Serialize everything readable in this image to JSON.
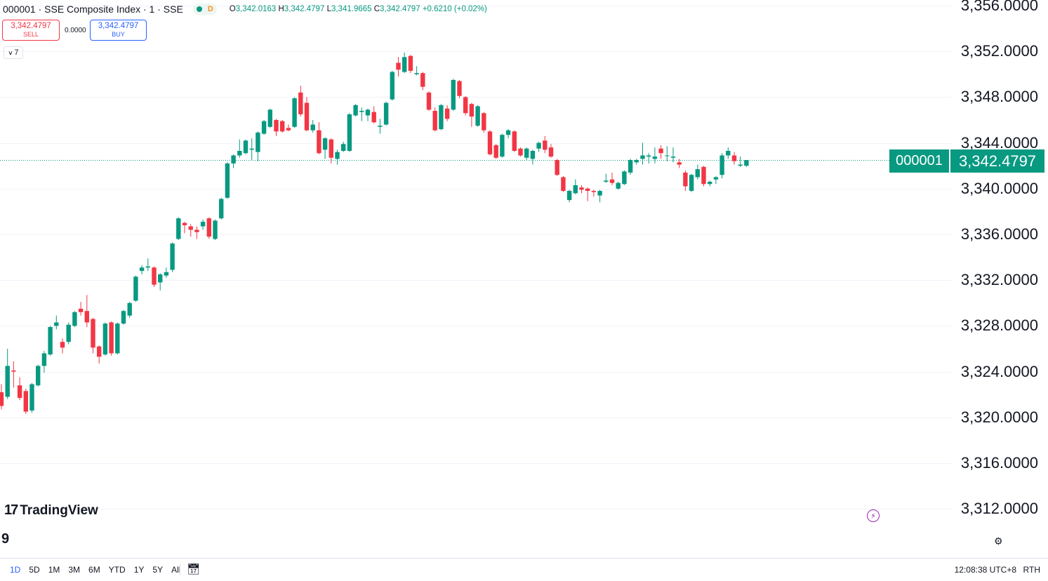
{
  "header": {
    "symbol_line": "000001 · SSE Composite Index · 1 · SSE",
    "status_letter": "D",
    "ohlc": {
      "o_label": "O",
      "o": "3,342.0163",
      "h_label": "H",
      "h": "3,342.4797",
      "l_label": "L",
      "l": "3,341.9665",
      "c_label": "C",
      "c": "3,342.4797",
      "change": "+0.6210 (+0.02%)"
    }
  },
  "trade": {
    "sell_price": "3,342.4797",
    "sell_label": "SELL",
    "spread": "0.0000",
    "buy_price": "3,342.4797",
    "buy_label": "BUY"
  },
  "indicators": {
    "count": "7"
  },
  "price_badge": {
    "symbol": "000001",
    "value": "3,342.4797"
  },
  "brand": {
    "logo_mark": "17",
    "logo_text": "TradingView"
  },
  "bottom_left_glyph": "9",
  "colors": {
    "up": "#089981",
    "down": "#f23645",
    "grid": "#f0f3fa",
    "price_line": "#089981",
    "accent": "#2962ff"
  },
  "icons": {
    "settings": "gear-icon",
    "lightning": "lightning-icon",
    "date_range": "calendar-icon"
  },
  "time_ranges": [
    "1D",
    "5D",
    "1M",
    "3M",
    "6M",
    "YTD",
    "1Y",
    "5Y",
    "All"
  ],
  "active_range": "1D",
  "footer": {
    "clock": "12:08:38 UTC+8",
    "session": "RTH"
  },
  "chart_data": {
    "type": "candlestick",
    "y_ticks": [
      "3,356.0000",
      "3,352.0000",
      "3,348.0000",
      "3,344.0000",
      "3,340.0000",
      "3,336.0000",
      "3,332.0000",
      "3,328.0000",
      "3,324.0000",
      "3,320.0000",
      "3,316.0000",
      "3,312.0000"
    ],
    "y_tick_values": [
      3356,
      3352,
      3348,
      3344,
      3340,
      3336,
      3332,
      3328,
      3324,
      3320,
      3316,
      3312
    ],
    "last_price": 3342.4797,
    "candles": [
      {
        "o": 3322.2,
        "h": 3322.9,
        "l": 3320.7,
        "c": 3321.0
      },
      {
        "o": 3321.8,
        "h": 3326.0,
        "l": 3321.6,
        "c": 3324.5
      },
      {
        "o": 3324.1,
        "h": 3324.9,
        "l": 3322.6,
        "c": 3324.0
      },
      {
        "o": 3322.8,
        "h": 3323.5,
        "l": 3321.5,
        "c": 3321.7
      },
      {
        "o": 3322.3,
        "h": 3322.5,
        "l": 3320.3,
        "c": 3320.5
      },
      {
        "o": 3320.6,
        "h": 3323.0,
        "l": 3320.4,
        "c": 3322.9
      },
      {
        "o": 3322.8,
        "h": 3324.6,
        "l": 3322.7,
        "c": 3324.5
      },
      {
        "o": 3324.5,
        "h": 3325.8,
        "l": 3323.9,
        "c": 3325.6
      },
      {
        "o": 3325.5,
        "h": 3328.0,
        "l": 3325.4,
        "c": 3327.9
      },
      {
        "o": 3328.0,
        "h": 3328.9,
        "l": 3327.7,
        "c": 3328.3
      },
      {
        "o": 3326.6,
        "h": 3326.9,
        "l": 3325.6,
        "c": 3326.1
      },
      {
        "o": 3326.6,
        "h": 3328.3,
        "l": 3326.4,
        "c": 3328.1
      },
      {
        "o": 3328.0,
        "h": 3329.3,
        "l": 3327.9,
        "c": 3329.2
      },
      {
        "o": 3329.5,
        "h": 3330.1,
        "l": 3328.9,
        "c": 3329.2
      },
      {
        "o": 3329.3,
        "h": 3330.7,
        "l": 3327.9,
        "c": 3328.3
      },
      {
        "o": 3328.6,
        "h": 3328.7,
        "l": 3325.6,
        "c": 3326.1
      },
      {
        "o": 3326.2,
        "h": 3326.3,
        "l": 3324.7,
        "c": 3325.3
      },
      {
        "o": 3325.5,
        "h": 3328.3,
        "l": 3325.4,
        "c": 3328.2
      },
      {
        "o": 3328.3,
        "h": 3328.4,
        "l": 3325.4,
        "c": 3325.6
      },
      {
        "o": 3325.6,
        "h": 3328.3,
        "l": 3325.5,
        "c": 3328.2
      },
      {
        "o": 3328.2,
        "h": 3329.4,
        "l": 3328.1,
        "c": 3329.3
      },
      {
        "o": 3328.9,
        "h": 3330.1,
        "l": 3328.7,
        "c": 3330.0
      },
      {
        "o": 3330.2,
        "h": 3332.4,
        "l": 3330.1,
        "c": 3332.3
      },
      {
        "o": 3332.8,
        "h": 3333.3,
        "l": 3332.5,
        "c": 3333.1
      },
      {
        "o": 3333.1,
        "h": 3333.9,
        "l": 3332.8,
        "c": 3333.2
      },
      {
        "o": 3333.1,
        "h": 3333.2,
        "l": 3331.4,
        "c": 3331.6
      },
      {
        "o": 3331.8,
        "h": 3332.6,
        "l": 3331.1,
        "c": 3332.5
      },
      {
        "o": 3332.4,
        "h": 3333.1,
        "l": 3332.2,
        "c": 3332.7
      },
      {
        "o": 3332.9,
        "h": 3335.3,
        "l": 3332.7,
        "c": 3335.2
      },
      {
        "o": 3335.6,
        "h": 3337.5,
        "l": 3335.5,
        "c": 3337.4
      },
      {
        "o": 3337.0,
        "h": 3337.1,
        "l": 3336.1,
        "c": 3336.8
      },
      {
        "o": 3336.7,
        "h": 3336.9,
        "l": 3335.8,
        "c": 3336.4
      },
      {
        "o": 3336.4,
        "h": 3336.7,
        "l": 3335.6,
        "c": 3336.2
      },
      {
        "o": 3336.7,
        "h": 3337.3,
        "l": 3336.4,
        "c": 3337.1
      },
      {
        "o": 3337.4,
        "h": 3337.5,
        "l": 3335.6,
        "c": 3335.8
      },
      {
        "o": 3335.6,
        "h": 3337.3,
        "l": 3335.5,
        "c": 3337.2
      },
      {
        "o": 3337.4,
        "h": 3339.2,
        "l": 3337.3,
        "c": 3339.1
      },
      {
        "o": 3339.2,
        "h": 3342.3,
        "l": 3339.1,
        "c": 3342.2
      },
      {
        "o": 3342.2,
        "h": 3343.0,
        "l": 3341.8,
        "c": 3342.9
      },
      {
        "o": 3342.9,
        "h": 3344.3,
        "l": 3342.7,
        "c": 3343.3
      },
      {
        "o": 3343.1,
        "h": 3344.3,
        "l": 3343.0,
        "c": 3344.2
      },
      {
        "o": 3343.4,
        "h": 3344.4,
        "l": 3342.5,
        "c": 3343.5
      },
      {
        "o": 3343.2,
        "h": 3345.0,
        "l": 3342.4,
        "c": 3344.9
      },
      {
        "o": 3344.8,
        "h": 3346.0,
        "l": 3344.7,
        "c": 3345.9
      },
      {
        "o": 3345.4,
        "h": 3347.0,
        "l": 3345.3,
        "c": 3346.9
      },
      {
        "o": 3346.0,
        "h": 3346.1,
        "l": 3344.6,
        "c": 3345.0
      },
      {
        "o": 3345.9,
        "h": 3346.0,
        "l": 3344.9,
        "c": 3345.0
      },
      {
        "o": 3345.3,
        "h": 3345.6,
        "l": 3345.0,
        "c": 3345.1
      },
      {
        "o": 3345.4,
        "h": 3348.0,
        "l": 3345.3,
        "c": 3347.9
      },
      {
        "o": 3348.4,
        "h": 3349.0,
        "l": 3346.3,
        "c": 3346.5
      },
      {
        "o": 3347.5,
        "h": 3348.0,
        "l": 3345.0,
        "c": 3345.1
      },
      {
        "o": 3345.1,
        "h": 3346.0,
        "l": 3344.9,
        "c": 3345.6
      },
      {
        "o": 3345.1,
        "h": 3345.8,
        "l": 3343.0,
        "c": 3343.1
      },
      {
        "o": 3343.4,
        "h": 3344.5,
        "l": 3342.6,
        "c": 3344.4
      },
      {
        "o": 3344.3,
        "h": 3344.4,
        "l": 3342.2,
        "c": 3342.7
      },
      {
        "o": 3342.6,
        "h": 3343.4,
        "l": 3342.1,
        "c": 3343.2
      },
      {
        "o": 3343.3,
        "h": 3344.1,
        "l": 3343.2,
        "c": 3343.9
      },
      {
        "o": 3343.3,
        "h": 3346.6,
        "l": 3343.2,
        "c": 3346.5
      },
      {
        "o": 3346.4,
        "h": 3347.4,
        "l": 3346.3,
        "c": 3347.3
      },
      {
        "o": 3346.7,
        "h": 3347.1,
        "l": 3345.9,
        "c": 3346.8
      },
      {
        "o": 3346.4,
        "h": 3347.0,
        "l": 3345.9,
        "c": 3346.9
      },
      {
        "o": 3346.7,
        "h": 3347.2,
        "l": 3345.7,
        "c": 3345.8
      },
      {
        "o": 3345.4,
        "h": 3346.1,
        "l": 3344.8,
        "c": 3345.5
      },
      {
        "o": 3345.6,
        "h": 3347.6,
        "l": 3345.5,
        "c": 3347.5
      },
      {
        "o": 3347.8,
        "h": 3350.3,
        "l": 3347.7,
        "c": 3350.2
      },
      {
        "o": 3351.0,
        "h": 3351.5,
        "l": 3349.8,
        "c": 3350.4
      },
      {
        "o": 3350.2,
        "h": 3351.9,
        "l": 3350.1,
        "c": 3351.5
      },
      {
        "o": 3351.6,
        "h": 3351.7,
        "l": 3350.1,
        "c": 3350.3
      },
      {
        "o": 3350.0,
        "h": 3350.7,
        "l": 3349.9,
        "c": 3350.1
      },
      {
        "o": 3350.1,
        "h": 3350.2,
        "l": 3348.6,
        "c": 3348.9
      },
      {
        "o": 3348.4,
        "h": 3348.5,
        "l": 3346.8,
        "c": 3346.9
      },
      {
        "o": 3346.8,
        "h": 3347.1,
        "l": 3345.0,
        "c": 3345.1
      },
      {
        "o": 3345.2,
        "h": 3347.4,
        "l": 3345.1,
        "c": 3347.3
      },
      {
        "o": 3347.0,
        "h": 3347.3,
        "l": 3345.9,
        "c": 3346.1
      },
      {
        "o": 3346.9,
        "h": 3349.6,
        "l": 3346.8,
        "c": 3349.5
      },
      {
        "o": 3349.4,
        "h": 3349.5,
        "l": 3347.9,
        "c": 3348.1
      },
      {
        "o": 3348.0,
        "h": 3348.1,
        "l": 3346.4,
        "c": 3346.6
      },
      {
        "o": 3347.4,
        "h": 3347.5,
        "l": 3345.4,
        "c": 3346.3
      },
      {
        "o": 3345.5,
        "h": 3347.3,
        "l": 3345.4,
        "c": 3347.2
      },
      {
        "o": 3346.6,
        "h": 3346.7,
        "l": 3344.9,
        "c": 3345.1
      },
      {
        "o": 3345.0,
        "h": 3345.1,
        "l": 3342.9,
        "c": 3343.0
      },
      {
        "o": 3343.8,
        "h": 3343.9,
        "l": 3342.6,
        "c": 3342.7
      },
      {
        "o": 3342.8,
        "h": 3344.8,
        "l": 3342.7,
        "c": 3344.7
      },
      {
        "o": 3344.7,
        "h": 3345.2,
        "l": 3344.4,
        "c": 3345.1
      },
      {
        "o": 3345.0,
        "h": 3345.1,
        "l": 3343.2,
        "c": 3343.3
      },
      {
        "o": 3343.5,
        "h": 3343.6,
        "l": 3342.8,
        "c": 3342.9
      },
      {
        "o": 3342.7,
        "h": 3343.6,
        "l": 3342.5,
        "c": 3343.5
      },
      {
        "o": 3342.6,
        "h": 3343.4,
        "l": 3342.1,
        "c": 3343.3
      },
      {
        "o": 3343.5,
        "h": 3344.1,
        "l": 3343.2,
        "c": 3344.0
      },
      {
        "o": 3344.2,
        "h": 3344.6,
        "l": 3343.1,
        "c": 3343.4
      },
      {
        "o": 3343.6,
        "h": 3343.9,
        "l": 3342.7,
        "c": 3342.8
      },
      {
        "o": 3342.5,
        "h": 3342.6,
        "l": 3341.1,
        "c": 3341.2
      },
      {
        "o": 3341.0,
        "h": 3341.1,
        "l": 3339.7,
        "c": 3339.8
      },
      {
        "o": 3339.0,
        "h": 3339.9,
        "l": 3338.8,
        "c": 3339.8
      },
      {
        "o": 3339.6,
        "h": 3340.8,
        "l": 3339.5,
        "c": 3340.3
      },
      {
        "o": 3340.1,
        "h": 3340.3,
        "l": 3339.6,
        "c": 3339.9
      },
      {
        "o": 3340.0,
        "h": 3340.1,
        "l": 3338.9,
        "c": 3339.8
      },
      {
        "o": 3339.8,
        "h": 3339.9,
        "l": 3339.3,
        "c": 3339.7
      },
      {
        "o": 3339.4,
        "h": 3339.9,
        "l": 3338.8,
        "c": 3339.8
      },
      {
        "o": 3340.6,
        "h": 3341.3,
        "l": 3340.5,
        "c": 3340.7
      },
      {
        "o": 3340.8,
        "h": 3341.4,
        "l": 3340.3,
        "c": 3340.5
      },
      {
        "o": 3340.0,
        "h": 3340.6,
        "l": 3339.9,
        "c": 3340.5
      },
      {
        "o": 3340.4,
        "h": 3341.6,
        "l": 3340.3,
        "c": 3341.5
      },
      {
        "o": 3341.4,
        "h": 3342.6,
        "l": 3341.2,
        "c": 3342.5
      },
      {
        "o": 3342.3,
        "h": 3342.6,
        "l": 3342.1,
        "c": 3342.5
      },
      {
        "o": 3342.6,
        "h": 3344.0,
        "l": 3342.1,
        "c": 3342.9
      },
      {
        "o": 3342.8,
        "h": 3343.1,
        "l": 3342.2,
        "c": 3342.9
      },
      {
        "o": 3342.6,
        "h": 3343.6,
        "l": 3342.2,
        "c": 3342.8
      },
      {
        "o": 3343.5,
        "h": 3343.8,
        "l": 3342.6,
        "c": 3343.1
      },
      {
        "o": 3342.9,
        "h": 3343.7,
        "l": 3342.4,
        "c": 3342.9
      },
      {
        "o": 3342.7,
        "h": 3343.6,
        "l": 3342.3,
        "c": 3342.8
      },
      {
        "o": 3342.3,
        "h": 3342.6,
        "l": 3341.8,
        "c": 3342.1
      },
      {
        "o": 3341.4,
        "h": 3341.6,
        "l": 3339.8,
        "c": 3340.2
      },
      {
        "o": 3339.8,
        "h": 3341.3,
        "l": 3339.7,
        "c": 3341.2
      },
      {
        "o": 3341.0,
        "h": 3342.1,
        "l": 3340.8,
        "c": 3341.7
      },
      {
        "o": 3341.9,
        "h": 3342.0,
        "l": 3340.2,
        "c": 3340.4
      },
      {
        "o": 3340.4,
        "h": 3340.7,
        "l": 3340.2,
        "c": 3340.6
      },
      {
        "o": 3340.8,
        "h": 3341.1,
        "l": 3340.4,
        "c": 3341.0
      },
      {
        "o": 3341.2,
        "h": 3343.1,
        "l": 3340.9,
        "c": 3342.9
      },
      {
        "o": 3342.9,
        "h": 3343.6,
        "l": 3342.6,
        "c": 3343.3
      },
      {
        "o": 3342.9,
        "h": 3343.2,
        "l": 3342.1,
        "c": 3342.4
      },
      {
        "o": 3342.0,
        "h": 3342.8,
        "l": 3341.9,
        "c": 3342.1
      },
      {
        "o": 3342.0,
        "h": 3342.5,
        "l": 3341.9,
        "c": 3342.5
      }
    ]
  }
}
